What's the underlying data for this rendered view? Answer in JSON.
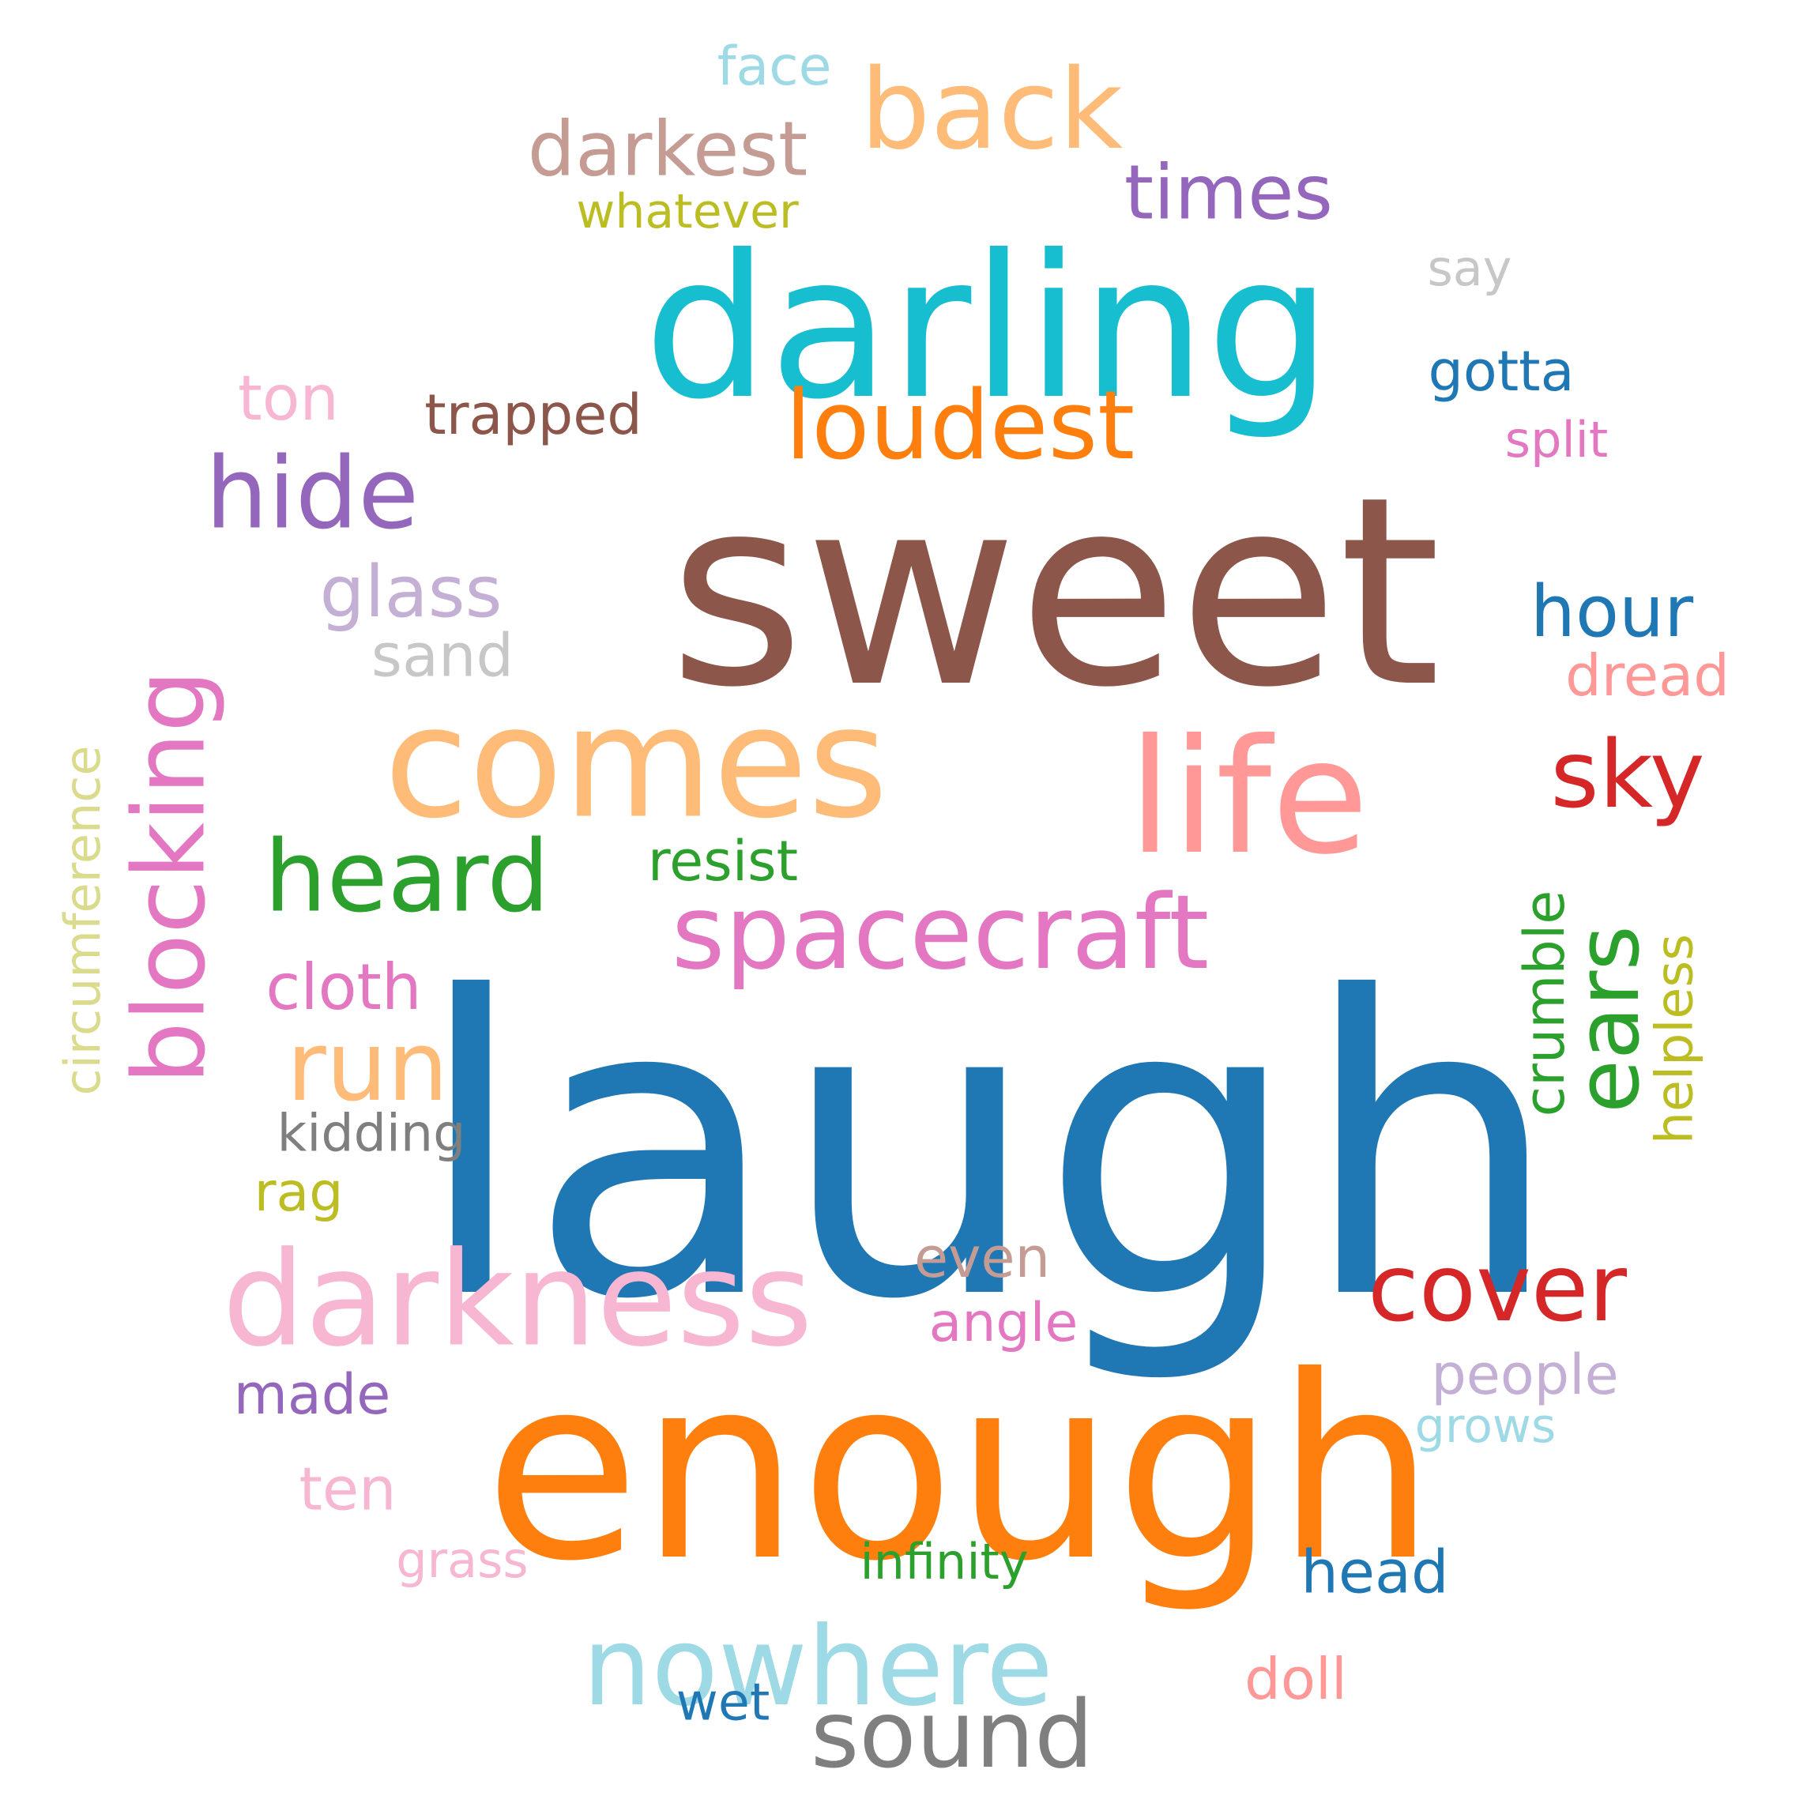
{
  "words": [
    {
      "text": "laugh",
      "color": "#1f77b4",
      "orientation": "horizontal"
    },
    {
      "text": "sweet",
      "color": "#8c564b",
      "orientation": "horizontal"
    },
    {
      "text": "enough",
      "color": "#ff7f0e",
      "orientation": "horizontal"
    },
    {
      "text": "darling",
      "color": "#17becf",
      "orientation": "horizontal"
    },
    {
      "text": "life",
      "color": "#ff9896",
      "orientation": "horizontal"
    },
    {
      "text": "comes",
      "color": "#ffbb78",
      "orientation": "horizontal"
    },
    {
      "text": "darkness",
      "color": "#f7b6d2",
      "orientation": "horizontal"
    },
    {
      "text": "blocking",
      "color": "#e377c2",
      "orientation": "vertical"
    },
    {
      "text": "spacecraft",
      "color": "#e377c2",
      "orientation": "horizontal"
    },
    {
      "text": "nowhere",
      "color": "#9edae5",
      "orientation": "horizontal"
    },
    {
      "text": "back",
      "color": "#ffbb78",
      "orientation": "horizontal"
    },
    {
      "text": "loudest",
      "color": "#ff7f0e",
      "orientation": "horizontal"
    },
    {
      "text": "hide",
      "color": "#9467bd",
      "orientation": "horizontal"
    },
    {
      "text": "heard",
      "color": "#2ca02c",
      "orientation": "horizontal"
    },
    {
      "text": "cover",
      "color": "#d62728",
      "orientation": "horizontal"
    },
    {
      "text": "ears",
      "color": "#2ca02c",
      "orientation": "vertical"
    },
    {
      "text": "sound",
      "color": "#7f7f7f",
      "orientation": "horizontal"
    },
    {
      "text": "run",
      "color": "#ffbb78",
      "orientation": "horizontal"
    },
    {
      "text": "sky",
      "color": "#d62728",
      "orientation": "horizontal"
    },
    {
      "text": "darkest",
      "color": "#c49c94",
      "orientation": "horizontal"
    },
    {
      "text": "times",
      "color": "#9467bd",
      "orientation": "horizontal"
    },
    {
      "text": "glass",
      "color": "#c5b0d5",
      "orientation": "horizontal"
    },
    {
      "text": "hour",
      "color": "#1f77b4",
      "orientation": "horizontal"
    },
    {
      "text": "circumference",
      "color": "#dbdb8d",
      "orientation": "vertical"
    },
    {
      "text": "crumble",
      "color": "#2ca02c",
      "orientation": "vertical"
    },
    {
      "text": "helpless",
      "color": "#bcbd22",
      "orientation": "vertical"
    },
    {
      "text": "dread",
      "color": "#ff9896",
      "orientation": "horizontal"
    },
    {
      "text": "cloth",
      "color": "#e377c2",
      "orientation": "horizontal"
    },
    {
      "text": "resist",
      "color": "#2ca02c",
      "orientation": "horizontal"
    },
    {
      "text": "trapped",
      "color": "#8c564b",
      "orientation": "horizontal"
    },
    {
      "text": "gotta",
      "color": "#1f77b4",
      "orientation": "horizontal"
    },
    {
      "text": "kidding",
      "color": "#7f7f7f",
      "orientation": "horizontal"
    },
    {
      "text": "people",
      "color": "#c5b0d5",
      "orientation": "horizontal"
    },
    {
      "text": "head",
      "color": "#1f77b4",
      "orientation": "horizontal"
    },
    {
      "text": "angle",
      "color": "#e377c2",
      "orientation": "horizontal"
    },
    {
      "text": "even",
      "color": "#c49c94",
      "orientation": "horizontal"
    },
    {
      "text": "infinity",
      "color": "#2ca02c",
      "orientation": "horizontal"
    },
    {
      "text": "whatever",
      "color": "#bcbd22",
      "orientation": "horizontal"
    },
    {
      "text": "doll",
      "color": "#ff9896",
      "orientation": "horizontal"
    },
    {
      "text": "sand",
      "color": "#c7c7c7",
      "orientation": "horizontal"
    },
    {
      "text": "split",
      "color": "#e377c2",
      "orientation": "horizontal"
    },
    {
      "text": "made",
      "color": "#9467bd",
      "orientation": "horizontal"
    },
    {
      "text": "ton",
      "color": "#f7b6d2",
      "orientation": "horizontal"
    },
    {
      "text": "ten",
      "color": "#f7b6d2",
      "orientation": "horizontal"
    },
    {
      "text": "grass",
      "color": "#f7b6d2",
      "orientation": "horizontal"
    },
    {
      "text": "grows",
      "color": "#9edae5",
      "orientation": "horizontal"
    },
    {
      "text": "face",
      "color": "#9edae5",
      "orientation": "horizontal"
    },
    {
      "text": "say",
      "color": "#c7c7c7",
      "orientation": "horizontal"
    },
    {
      "text": "rag",
      "color": "#bcbd22",
      "orientation": "horizontal"
    },
    {
      "text": "wet",
      "color": "#1f77b4",
      "orientation": "horizontal"
    }
  ]
}
